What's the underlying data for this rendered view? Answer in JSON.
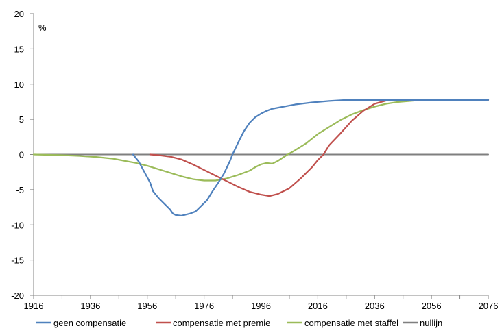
{
  "chart_data": {
    "type": "line",
    "unit_label": "%",
    "xlim": [
      1916,
      2076
    ],
    "ylim": [
      -20,
      20
    ],
    "x_ticks": [
      "1916",
      "1936",
      "1956",
      "1976",
      "1996",
      "2016",
      "2036",
      "2056",
      "2076"
    ],
    "y_ticks": [
      "20",
      "15",
      "10",
      "5",
      "0",
      "-5",
      "-10",
      "-15",
      "-20"
    ],
    "grid": false,
    "legend_position": "bottom",
    "series": [
      {
        "name": "geen compensatie",
        "color": "#4f81bd",
        "points": [
          [
            1951,
            0
          ],
          [
            1953,
            -1
          ],
          [
            1955,
            -2.5
          ],
          [
            1957,
            -4
          ],
          [
            1958,
            -5.2
          ],
          [
            1960,
            -6.2
          ],
          [
            1962,
            -7
          ],
          [
            1964,
            -7.8
          ],
          [
            1965,
            -8.4
          ],
          [
            1966,
            -8.6
          ],
          [
            1968,
            -8.7
          ],
          [
            1970,
            -8.5
          ],
          [
            1971,
            -8.4
          ],
          [
            1973,
            -8.1
          ],
          [
            1975,
            -7.3
          ],
          [
            1977,
            -6.5
          ],
          [
            1979,
            -5.2
          ],
          [
            1981,
            -4
          ],
          [
            1983,
            -2.7
          ],
          [
            1985,
            -1
          ],
          [
            1986,
            0
          ],
          [
            1988,
            1.7
          ],
          [
            1990,
            3.3
          ],
          [
            1992,
            4.5
          ],
          [
            1994,
            5.3
          ],
          [
            1996,
            5.8
          ],
          [
            1998,
            6.2
          ],
          [
            2000,
            6.5
          ],
          [
            2004,
            6.8
          ],
          [
            2008,
            7.1
          ],
          [
            2014,
            7.4
          ],
          [
            2020,
            7.6
          ],
          [
            2026,
            7.75
          ],
          [
            2030,
            7.75
          ],
          [
            2040,
            7.75
          ],
          [
            2050,
            7.75
          ],
          [
            2076,
            7.75
          ]
        ]
      },
      {
        "name": "compensatie met premie",
        "color": "#c0504d",
        "points": [
          [
            1957,
            0
          ],
          [
            1960,
            -0.1
          ],
          [
            1964,
            -0.3
          ],
          [
            1968,
            -0.7
          ],
          [
            1972,
            -1.4
          ],
          [
            1976,
            -2.2
          ],
          [
            1980,
            -3
          ],
          [
            1984,
            -3.8
          ],
          [
            1988,
            -4.6
          ],
          [
            1992,
            -5.3
          ],
          [
            1996,
            -5.7
          ],
          [
            1999,
            -5.9
          ],
          [
            2002,
            -5.6
          ],
          [
            2006,
            -4.8
          ],
          [
            2010,
            -3.4
          ],
          [
            2014,
            -1.8
          ],
          [
            2016,
            -0.8
          ],
          [
            2018,
            0
          ],
          [
            2020,
            1.3
          ],
          [
            2024,
            3
          ],
          [
            2028,
            4.8
          ],
          [
            2032,
            6.2
          ],
          [
            2036,
            7.2
          ],
          [
            2040,
            7.65
          ],
          [
            2044,
            7.75
          ],
          [
            2050,
            7.75
          ],
          [
            2076,
            7.75
          ]
        ]
      },
      {
        "name": "compensatie met staffel",
        "color": "#9bbb59",
        "points": [
          [
            1916,
            0
          ],
          [
            1926,
            -0.1
          ],
          [
            1932,
            -0.2
          ],
          [
            1938,
            -0.35
          ],
          [
            1944,
            -0.6
          ],
          [
            1948,
            -0.9
          ],
          [
            1952,
            -1.2
          ],
          [
            1956,
            -1.6
          ],
          [
            1960,
            -2.1
          ],
          [
            1964,
            -2.6
          ],
          [
            1968,
            -3.1
          ],
          [
            1972,
            -3.5
          ],
          [
            1976,
            -3.7
          ],
          [
            1980,
            -3.7
          ],
          [
            1984,
            -3.4
          ],
          [
            1988,
            -2.9
          ],
          [
            1992,
            -2.3
          ],
          [
            1994,
            -1.8
          ],
          [
            1996,
            -1.4
          ],
          [
            1998,
            -1.2
          ],
          [
            2000,
            -1.3
          ],
          [
            2002,
            -0.9
          ],
          [
            2005,
            -0.1
          ],
          [
            2008,
            0.6
          ],
          [
            2012,
            1.6
          ],
          [
            2016,
            2.9
          ],
          [
            2020,
            3.9
          ],
          [
            2024,
            4.9
          ],
          [
            2028,
            5.7
          ],
          [
            2032,
            6.3
          ],
          [
            2036,
            6.8
          ],
          [
            2040,
            7.2
          ],
          [
            2044,
            7.45
          ],
          [
            2050,
            7.65
          ],
          [
            2056,
            7.75
          ],
          [
            2076,
            7.75
          ]
        ]
      },
      {
        "name": "nullijn",
        "color": "#7f7f7f",
        "points": [
          [
            1916,
            0
          ],
          [
            2076,
            0
          ]
        ]
      }
    ]
  }
}
